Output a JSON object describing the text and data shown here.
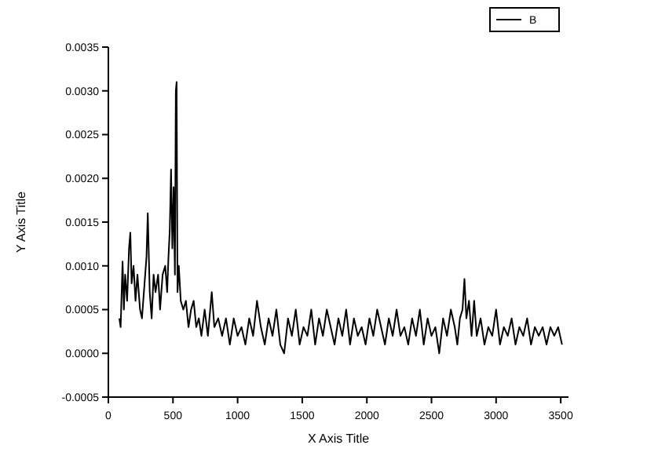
{
  "chart_data": {
    "type": "line",
    "xlabel": "X Axis Title",
    "ylabel": "Y Axis Title",
    "xlim": [
      0,
      3560
    ],
    "ylim": [
      -0.0005,
      0.0035
    ],
    "xticks": [
      0,
      500,
      1000,
      1500,
      2000,
      2500,
      3000,
      3500
    ],
    "yticks": [
      {
        "value": -0.0005,
        "label": "-0.0005"
      },
      {
        "value": 0,
        "label": "0.0000"
      },
      {
        "value": 0.0005,
        "label": "0.0005"
      },
      {
        "value": 0.001,
        "label": "0.0010"
      },
      {
        "value": 0.0015,
        "label": "0.0015"
      },
      {
        "value": 0.002,
        "label": "0.0020"
      },
      {
        "value": 0.0025,
        "label": "0.0025"
      },
      {
        "value": 0.003,
        "label": "0.0030"
      },
      {
        "value": 0.0035,
        "label": "0.0035"
      }
    ],
    "legend": "top right",
    "marker": "none",
    "line_style": "solid",
    "grid": false,
    "series": [
      {
        "name": "B",
        "color": "#000000",
        "x": [
          85,
          95,
          110,
          120,
          130,
          145,
          160,
          170,
          180,
          195,
          210,
          225,
          245,
          260,
          280,
          295,
          305,
          320,
          335,
          350,
          365,
          385,
          400,
          420,
          440,
          455,
          465,
          475,
          485,
          495,
          505,
          515,
          522,
          528,
          535,
          545,
          560,
          580,
          600,
          620,
          640,
          660,
          680,
          700,
          720,
          745,
          770,
          800,
          820,
          850,
          880,
          910,
          940,
          970,
          1000,
          1030,
          1060,
          1090,
          1120,
          1150,
          1180,
          1210,
          1240,
          1270,
          1300,
          1330,
          1360,
          1390,
          1420,
          1450,
          1480,
          1510,
          1540,
          1570,
          1600,
          1630,
          1660,
          1690,
          1720,
          1750,
          1780,
          1810,
          1840,
          1870,
          1900,
          1930,
          1960,
          1990,
          2020,
          2050,
          2080,
          2110,
          2140,
          2170,
          2200,
          2230,
          2260,
          2290,
          2320,
          2350,
          2380,
          2410,
          2440,
          2470,
          2500,
          2530,
          2560,
          2590,
          2620,
          2650,
          2680,
          2700,
          2720,
          2740,
          2755,
          2770,
          2790,
          2810,
          2830,
          2850,
          2880,
          2910,
          2940,
          2970,
          3000,
          3030,
          3060,
          3090,
          3120,
          3150,
          3180,
          3210,
          3240,
          3270,
          3300,
          3330,
          3360,
          3390,
          3420,
          3450,
          3480,
          3510
        ],
        "values": [
          0.0004,
          0.0003,
          0.00105,
          0.0005,
          0.0009,
          0.0006,
          0.0012,
          0.00138,
          0.0008,
          0.001,
          0.0006,
          0.0009,
          0.0005,
          0.0004,
          0.0008,
          0.0011,
          0.0016,
          0.0007,
          0.0004,
          0.0009,
          0.0007,
          0.0009,
          0.0005,
          0.0009,
          0.001,
          0.0007,
          0.0011,
          0.0014,
          0.0021,
          0.0012,
          0.0019,
          0.0009,
          0.003,
          0.0031,
          0.0007,
          0.001,
          0.0006,
          0.0005,
          0.0006,
          0.0003,
          0.0005,
          0.0006,
          0.0003,
          0.0004,
          0.0002,
          0.0005,
          0.0002,
          0.0007,
          0.0003,
          0.0004,
          0.0002,
          0.0004,
          0.0001,
          0.0004,
          0.0002,
          0.0003,
          0.0001,
          0.0004,
          0.0002,
          0.0006,
          0.0003,
          0.0001,
          0.0004,
          0.0002,
          0.0005,
          0.0001,
          0.0,
          0.0004,
          0.0002,
          0.0005,
          0.0001,
          0.0003,
          0.0002,
          0.0005,
          0.0001,
          0.0004,
          0.0002,
          0.0005,
          0.0003,
          0.0001,
          0.0004,
          0.0002,
          0.0005,
          0.0001,
          0.0004,
          0.0002,
          0.0003,
          0.0001,
          0.0004,
          0.0002,
          0.0005,
          0.0003,
          0.0001,
          0.0004,
          0.0002,
          0.0005,
          0.0002,
          0.0003,
          0.0001,
          0.0004,
          0.0002,
          0.0005,
          0.0001,
          0.0004,
          0.0002,
          0.0003,
          0.0,
          0.0004,
          0.0002,
          0.0005,
          0.0003,
          0.0001,
          0.0004,
          0.0005,
          0.00085,
          0.0004,
          0.0006,
          0.0002,
          0.0006,
          0.0002,
          0.0004,
          0.0001,
          0.0003,
          0.0002,
          0.0005,
          0.0001,
          0.0003,
          0.0002,
          0.0004,
          0.0001,
          0.0003,
          0.0002,
          0.0004,
          0.0001,
          0.0003,
          0.0002,
          0.0003,
          0.0001,
          0.0003,
          0.0002,
          0.0003,
          0.0001
        ]
      }
    ]
  }
}
